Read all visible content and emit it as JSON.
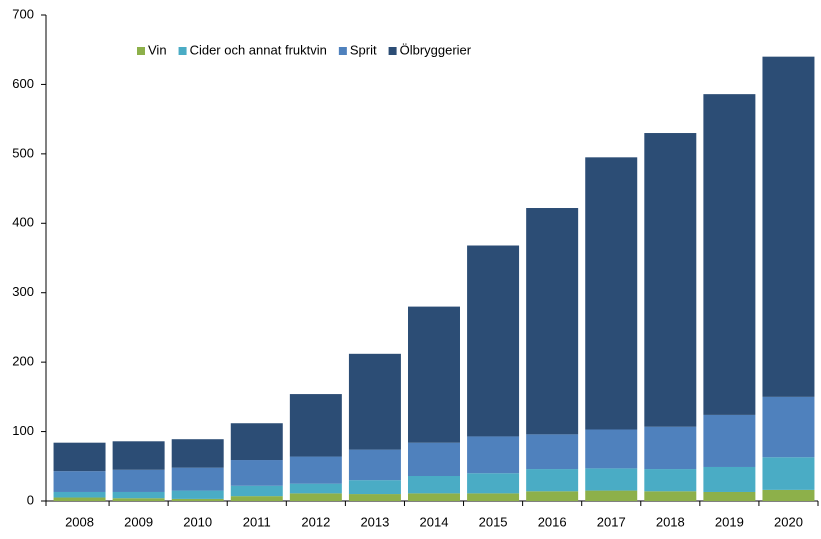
{
  "chart_data": {
    "type": "stacked_bar",
    "categories": [
      "2008",
      "2009",
      "2010",
      "2011",
      "2012",
      "2013",
      "2014",
      "2015",
      "2016",
      "2017",
      "2018",
      "2019",
      "2020"
    ],
    "series": [
      {
        "name": "Vin",
        "color": "#8db04a",
        "values": [
          5,
          4,
          3,
          7,
          11,
          10,
          11,
          11,
          14,
          15,
          14,
          13,
          16
        ]
      },
      {
        "name": "Cider och annat fruktvin",
        "color": "#4aacc5",
        "values": [
          8,
          9,
          12,
          15,
          14,
          20,
          25,
          29,
          32,
          32,
          32,
          36,
          47
        ]
      },
      {
        "name": "Sprit",
        "color": "#4f81bd",
        "values": [
          30,
          32,
          33,
          37,
          39,
          44,
          48,
          53,
          50,
          56,
          61,
          75,
          87
        ]
      },
      {
        "name": "Ölbryggerier",
        "color": "#2c4d75",
        "values": [
          41,
          41,
          41,
          53,
          90,
          138,
          196,
          275,
          326,
          392,
          423,
          462,
          490
        ]
      }
    ],
    "ylim": [
      0,
      700
    ],
    "yticks": [
      0,
      100,
      200,
      300,
      400,
      500,
      600,
      700
    ],
    "grid": false,
    "legend": "top"
  }
}
